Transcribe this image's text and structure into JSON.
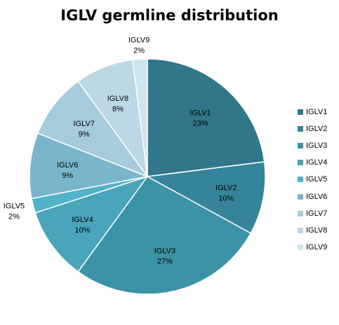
{
  "chart_data": {
    "type": "pie",
    "title": "IGLV germline distribution",
    "categories": [
      "IGLV1",
      "IGLV2",
      "IGLV3",
      "IGLV4",
      "IGLV5",
      "IGLV6",
      "IGLV7",
      "IGLV8",
      "IGLV9"
    ],
    "values": [
      23,
      10,
      27,
      10,
      2,
      9,
      9,
      8,
      2
    ],
    "value_labels": [
      "23%",
      "10%",
      "27%",
      "10%",
      "2%",
      "9%",
      "9%",
      "8%",
      "2%"
    ],
    "colors": [
      "#31768a",
      "#35849a",
      "#3c93a6",
      "#49a5bb",
      "#50b3ca",
      "#7ab6cb",
      "#a6cbdb",
      "#bcd8e4",
      "#cfe5ee"
    ],
    "legend_position": "right",
    "start_angle": "12 o'clock, clockwise"
  }
}
